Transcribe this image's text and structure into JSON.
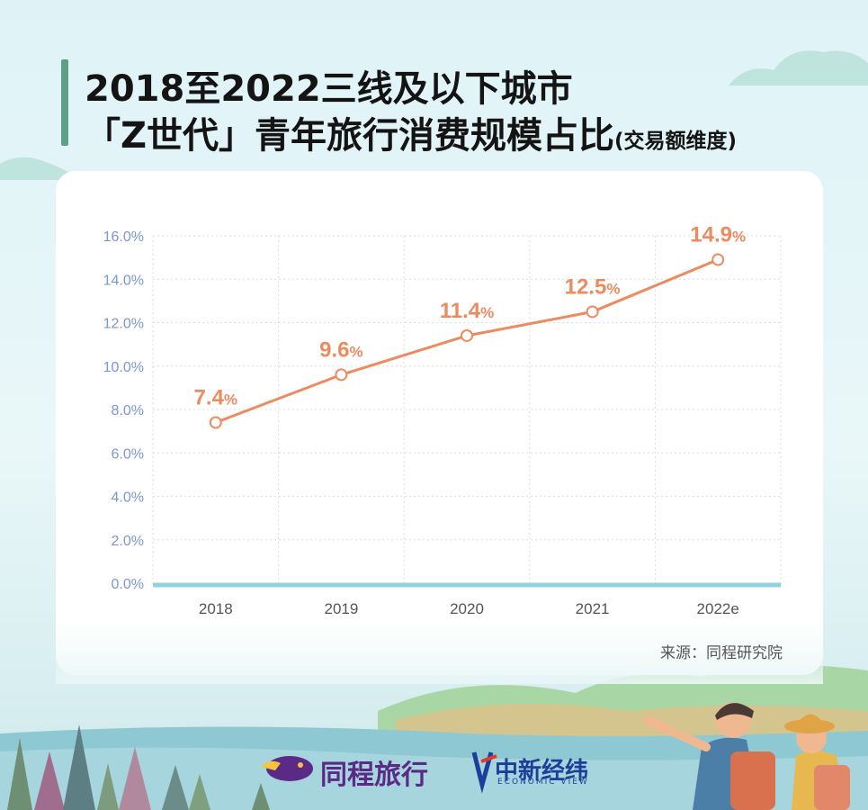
{
  "title": {
    "line1": "2018至2022三线及以下城市",
    "line2": "「Z世代」青年旅行消费规模占比",
    "note": "(交易额维度)"
  },
  "source": "来源：同程研究院",
  "brands": {
    "tongcheng": "同程旅行",
    "zhongxin": "中新经纬",
    "zhongxin_sub": "ECONOMIC VIEW"
  },
  "colors": {
    "line": "#ee8a5f",
    "tick_label": "#7b96d3",
    "grid": "#d9dde3",
    "baseline": "#8fd3e0",
    "brand_purple": "#5a2a86",
    "brand_blue": "#1c3f9a"
  },
  "chart_data": {
    "type": "line",
    "categories": [
      "2018",
      "2019",
      "2020",
      "2021",
      "2022e"
    ],
    "values": [
      7.4,
      9.6,
      11.4,
      12.5,
      14.9
    ],
    "value_labels": [
      "7.4%",
      "9.6%",
      "11.4%",
      "12.5%",
      "14.9%"
    ],
    "y_ticks": [
      "0.0%",
      "2.0%",
      "4.0%",
      "6.0%",
      "8.0%",
      "10.0%",
      "12.0%",
      "14.0%",
      "16.0%"
    ],
    "ylim": [
      0,
      16
    ],
    "grid": true,
    "legend": "none"
  }
}
